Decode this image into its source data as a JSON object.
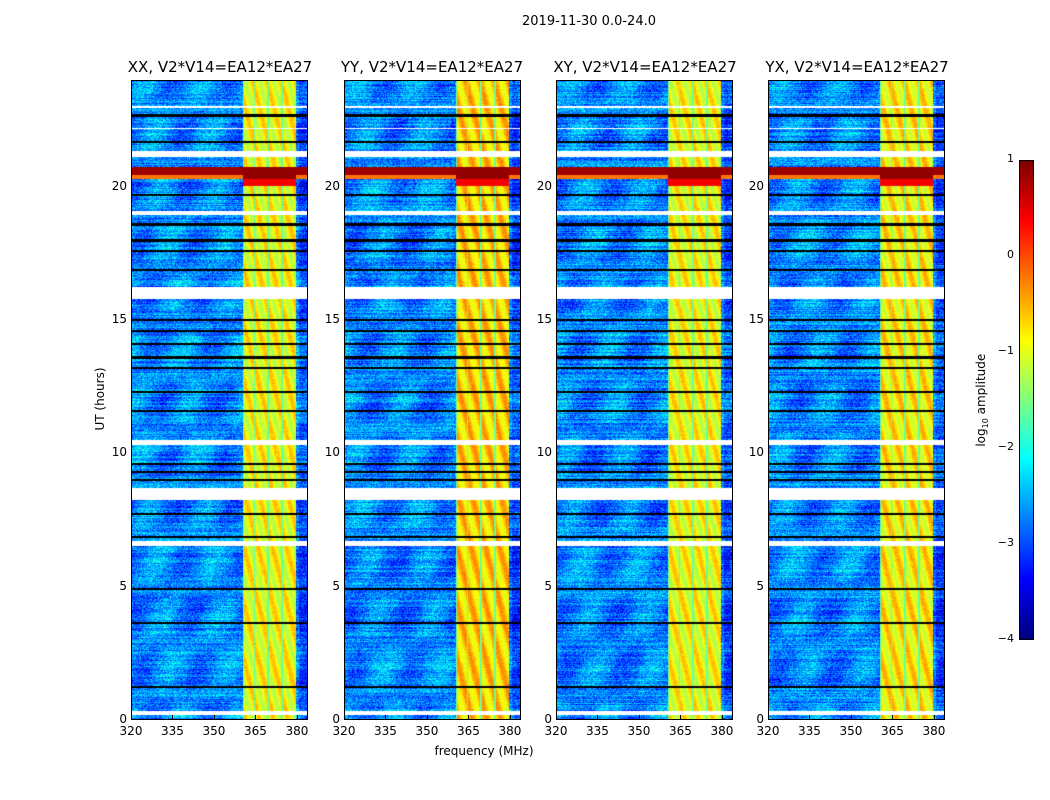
{
  "suptitle": "2019-11-30 0.0-24.0",
  "chart_data": {
    "type": "heatmap",
    "panels": [
      {
        "title": "XX, V2*V14=EA12*EA27"
      },
      {
        "title": "YY, V2*V14=EA12*EA27"
      },
      {
        "title": "XY, V2*V14=EA12*EA27"
      },
      {
        "title": "YX, V2*V14=EA12*EA27"
      }
    ],
    "xlabel": "frequency (MHz)",
    "ylabel": "UT (hours)",
    "xlim": [
      320,
      384
    ],
    "ylim": [
      0,
      24
    ],
    "xticks": [
      "320",
      "335",
      "350",
      "365",
      "380"
    ],
    "xtick_values": [
      320,
      335,
      350,
      365,
      380
    ],
    "yticks": [
      "0",
      "5",
      "10",
      "15",
      "20"
    ],
    "ytick_values": [
      0,
      5,
      10,
      15,
      20
    ],
    "colorbar": {
      "label": "log10 amplitude",
      "label_main": "log",
      "label_sub": "10",
      "label_rest": " amplitude",
      "range": [
        -4,
        1
      ],
      "ticks": [
        "1",
        "0",
        "−1",
        "−2",
        "−3",
        "−4"
      ],
      "tick_values": [
        1,
        0,
        -1,
        -2,
        -3,
        -4
      ],
      "colormap": "jet"
    },
    "background_level": -2.7,
    "rfi_band_mhz": [
      360.6,
      380.0
    ],
    "rfi_band_level": [
      -0.9,
      -0.9,
      -0.9,
      -0.9
    ],
    "rfi_band_dividers_mhz": [
      364.8,
      369.8,
      374.8
    ],
    "strong_rfi_ut": [
      20.3,
      20.75
    ],
    "strong_rfi_level": 0.9,
    "flagged_gaps_ut": [
      [
        0.15,
        0.3
      ],
      [
        6.5,
        6.7
      ],
      [
        8.25,
        8.7
      ],
      [
        10.3,
        10.5
      ],
      [
        15.8,
        16.25
      ],
      [
        18.95,
        19.1
      ],
      [
        21.15,
        21.35
      ],
      [
        23.0,
        23.05
      ],
      [
        22.2,
        22.25
      ]
    ],
    "flagged_lines_ut": [
      1.2,
      3.6,
      4.9,
      6.85,
      7.7,
      9.0,
      9.3,
      9.6,
      11.6,
      12.3,
      13.2,
      13.6,
      14.1,
      14.6,
      15.0,
      16.9,
      17.6,
      18.0,
      18.6,
      19.7,
      21.7,
      22.7
    ]
  }
}
